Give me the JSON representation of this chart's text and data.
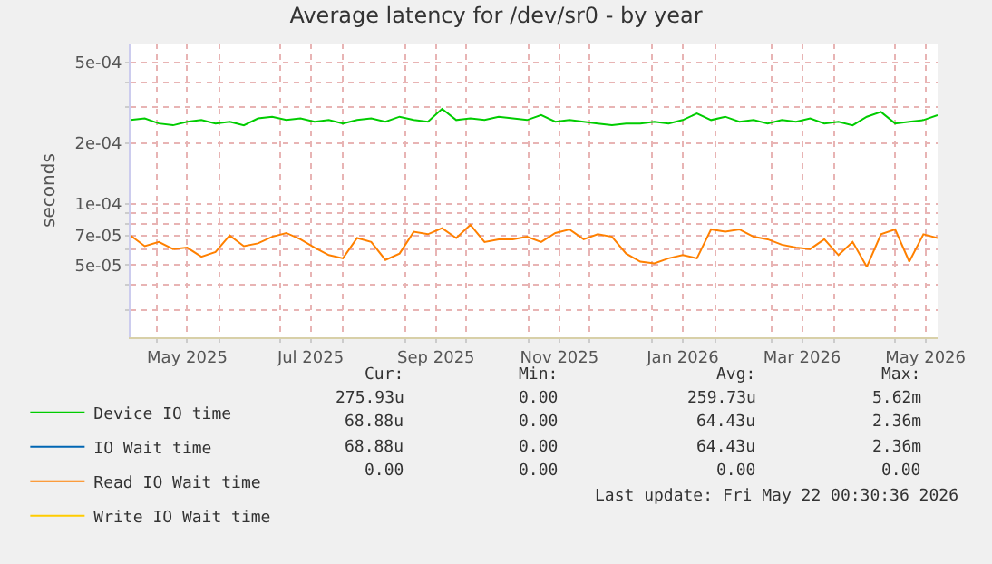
{
  "chart_data": {
    "type": "line",
    "title": "Average latency for /dev/sr0 - by year",
    "ylabel": "seconds",
    "log": "y",
    "grid": true,
    "legend": "bottom left",
    "marker": "none",
    "line_style": "solid",
    "x": [
      "2025-04-18",
      "2025-04-25",
      "2025-05-02",
      "2025-05-09",
      "2025-05-16",
      "2025-05-23",
      "2025-05-30",
      "2025-06-06",
      "2025-06-13",
      "2025-06-20",
      "2025-06-27",
      "2025-07-04",
      "2025-07-11",
      "2025-07-18",
      "2025-07-25",
      "2025-08-01",
      "2025-08-08",
      "2025-08-15",
      "2025-08-22",
      "2025-08-29",
      "2025-09-05",
      "2025-09-12",
      "2025-09-19",
      "2025-09-26",
      "2025-10-03",
      "2025-10-10",
      "2025-10-17",
      "2025-10-24",
      "2025-10-31",
      "2025-11-07",
      "2025-11-14",
      "2025-11-21",
      "2025-11-28",
      "2025-12-05",
      "2025-12-12",
      "2025-12-19",
      "2025-12-26",
      "2026-01-02",
      "2026-01-09",
      "2026-01-16",
      "2026-01-23",
      "2026-01-30",
      "2026-02-06",
      "2026-02-13",
      "2026-02-20",
      "2026-02-27",
      "2026-03-06",
      "2026-03-13",
      "2026-03-20",
      "2026-03-27",
      "2026-04-03",
      "2026-04-10",
      "2026-04-17",
      "2026-04-24",
      "2026-05-01",
      "2026-05-08",
      "2026-05-15",
      "2026-05-22"
    ],
    "series": [
      {
        "name": "Device IO time",
        "color": "#00cc00",
        "values": [
          0.00026,
          0.000265,
          0.00025,
          0.000245,
          0.000255,
          0.00026,
          0.00025,
          0.000255,
          0.000245,
          0.000265,
          0.00027,
          0.00026,
          0.000265,
          0.000255,
          0.00026,
          0.00025,
          0.00026,
          0.000265,
          0.000255,
          0.00027,
          0.00026,
          0.000255,
          0.000295,
          0.00026,
          0.000265,
          0.00026,
          0.00027,
          0.000265,
          0.00026,
          0.000275,
          0.000255,
          0.00026,
          0.000255,
          0.00025,
          0.000245,
          0.00025,
          0.00025,
          0.000255,
          0.00025,
          0.00026,
          0.00028,
          0.00026,
          0.00027,
          0.000255,
          0.00026,
          0.00025,
          0.00026,
          0.000255,
          0.000265,
          0.00025,
          0.000255,
          0.000245,
          0.00027,
          0.000285,
          0.00025,
          0.000255,
          0.00026,
          0.000275
        ]
      },
      {
        "name": "IO Wait time",
        "color": "#0066b3",
        "values": [
          null,
          null,
          null,
          null,
          null,
          null,
          null,
          null,
          null,
          null,
          null,
          null,
          null,
          null,
          null,
          null,
          null,
          null,
          null,
          null,
          null,
          null,
          null,
          null,
          null,
          null,
          null,
          null,
          null,
          null,
          null,
          null,
          null,
          null,
          null,
          null,
          null,
          null,
          null,
          null,
          null,
          null,
          null,
          null,
          null,
          null,
          null,
          null,
          null,
          null,
          null,
          null,
          null,
          null,
          null,
          null,
          null,
          null
        ]
      },
      {
        "name": "Read IO Wait time",
        "color": "#ff8000",
        "values": [
          7e-05,
          6.2e-05,
          6.5e-05,
          6e-05,
          6.1e-05,
          5.5e-05,
          5.8e-05,
          7e-05,
          6.2e-05,
          6.4e-05,
          6.9e-05,
          7.2e-05,
          6.7e-05,
          6.1e-05,
          5.6e-05,
          5.4e-05,
          6.8e-05,
          6.5e-05,
          5.3e-05,
          5.7e-05,
          7.3e-05,
          7.1e-05,
          7.6e-05,
          6.8e-05,
          7.9e-05,
          6.5e-05,
          6.7e-05,
          6.7e-05,
          6.9e-05,
          6.5e-05,
          7.2e-05,
          7.5e-05,
          6.7e-05,
          7.1e-05,
          6.9e-05,
          5.7e-05,
          5.2e-05,
          5.1e-05,
          5.4e-05,
          5.6e-05,
          5.4e-05,
          7.5e-05,
          7.3e-05,
          7.5e-05,
          6.9e-05,
          6.7e-05,
          6.3e-05,
          6.1e-05,
          6e-05,
          6.7e-05,
          5.6e-05,
          6.5e-05,
          4.9e-05,
          7.1e-05,
          7.5e-05,
          5.2e-05,
          7.1e-05,
          6.8e-05
        ]
      },
      {
        "name": "Write IO Wait time",
        "color": "#ffcc00",
        "values": [
          null,
          null,
          null,
          null,
          null,
          null,
          null,
          null,
          null,
          null,
          null,
          null,
          null,
          null,
          null,
          null,
          null,
          null,
          null,
          null,
          null,
          null,
          null,
          null,
          null,
          null,
          null,
          null,
          null,
          null,
          null,
          null,
          null,
          null,
          null,
          null,
          null,
          null,
          null,
          null,
          null,
          null,
          null,
          null,
          null,
          null,
          null,
          null,
          null,
          null,
          null,
          null,
          null,
          null,
          null,
          null,
          null,
          null
        ]
      }
    ],
    "xlim": [
      "2025-04-18",
      "2026-05-22"
    ],
    "xticks": [
      {
        "value": "2025-05-01",
        "label": null
      },
      {
        "value": "2025-05-16",
        "label": "May 2025"
      },
      {
        "value": "2025-06-01",
        "label": null
      },
      {
        "value": "2025-07-01",
        "label": null
      },
      {
        "value": "2025-07-16",
        "label": "Jul 2025"
      },
      {
        "value": "2025-08-01",
        "label": null
      },
      {
        "value": "2025-09-01",
        "label": null
      },
      {
        "value": "2025-09-16",
        "label": "Sep 2025"
      },
      {
        "value": "2025-10-01",
        "label": null
      },
      {
        "value": "2025-11-01",
        "label": null
      },
      {
        "value": "2025-11-16",
        "label": "Nov 2025"
      },
      {
        "value": "2025-12-01",
        "label": null
      },
      {
        "value": "2026-01-01",
        "label": null
      },
      {
        "value": "2026-01-16",
        "label": "Jan 2026"
      },
      {
        "value": "2026-02-01",
        "label": null
      },
      {
        "value": "2026-03-01",
        "label": null
      },
      {
        "value": "2026-03-16",
        "label": "Mar 2026"
      },
      {
        "value": "2026-04-01",
        "label": null
      },
      {
        "value": "2026-05-01",
        "label": null
      },
      {
        "value": "2026-05-16",
        "label": "May 2026"
      }
    ],
    "ylim": [
      2.2e-05,
      0.00062
    ],
    "yticks": [
      {
        "value": 3e-05,
        "label": null
      },
      {
        "value": 4e-05,
        "label": null
      },
      {
        "value": 5e-05,
        "label": "5e-05"
      },
      {
        "value": 6e-05,
        "label": null
      },
      {
        "value": 7e-05,
        "label": "7e-05"
      },
      {
        "value": 8e-05,
        "label": null
      },
      {
        "value": 9e-05,
        "label": null
      },
      {
        "value": 0.0001,
        "label": "1e-04"
      },
      {
        "value": 0.0002,
        "label": "2e-04"
      },
      {
        "value": 0.0003,
        "label": null
      },
      {
        "value": 0.0004,
        "label": null
      },
      {
        "value": 0.0005,
        "label": "5e-04"
      }
    ],
    "annotations": [
      "Cur:",
      "Min:",
      "Avg:",
      "Max:",
      "275.93u",
      "0.00",
      "259.73u",
      "5.62m",
      "68.88u",
      "0.00",
      "64.43u",
      "2.36m",
      "68.88u",
      "0.00",
      "64.43u",
      "2.36m",
      "0.00",
      "0.00",
      "0.00",
      "0.00",
      "Last update: Fri May 22 00:30:36 2026"
    ]
  }
}
